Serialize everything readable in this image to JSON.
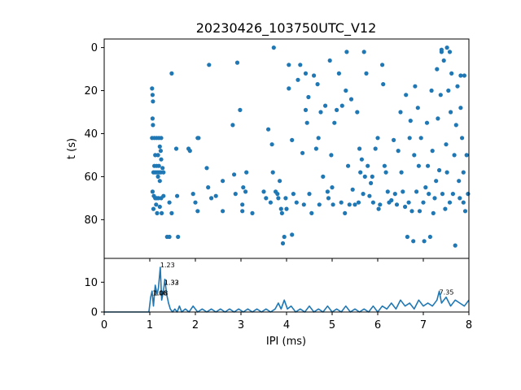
{
  "chart_data": {
    "title": "20230426_103750UTC_V12",
    "color": "#1f77b4",
    "raster": {
      "type": "scatter",
      "xlim": [
        0,
        8
      ],
      "ylim": [
        98,
        -4
      ],
      "ylabel": "t (s)",
      "yticks": [
        0,
        20,
        40,
        60,
        80
      ],
      "points": [
        [
          1.05,
          19
        ],
        [
          1.06,
          22
        ],
        [
          1.07,
          25
        ],
        [
          1.06,
          33
        ],
        [
          1.07,
          36
        ],
        [
          1.05,
          42
        ],
        [
          1.1,
          42
        ],
        [
          1.15,
          42
        ],
        [
          1.2,
          42
        ],
        [
          1.25,
          42
        ],
        [
          1.22,
          46
        ],
        [
          1.24,
          48
        ],
        [
          1.12,
          50
        ],
        [
          1.18,
          50
        ],
        [
          1.25,
          52
        ],
        [
          1.1,
          55
        ],
        [
          1.15,
          55
        ],
        [
          1.2,
          55
        ],
        [
          1.28,
          56
        ],
        [
          1.08,
          58
        ],
        [
          1.12,
          58
        ],
        [
          1.16,
          58
        ],
        [
          1.2,
          58
        ],
        [
          1.24,
          58
        ],
        [
          1.3,
          58
        ],
        [
          1.18,
          60
        ],
        [
          1.22,
          62
        ],
        [
          1.06,
          67
        ],
        [
          1.09,
          69
        ],
        [
          1.12,
          70
        ],
        [
          1.15,
          70
        ],
        [
          1.19,
          70
        ],
        [
          1.25,
          70
        ],
        [
          1.3,
          69
        ],
        [
          1.14,
          73
        ],
        [
          1.22,
          74
        ],
        [
          1.08,
          75
        ],
        [
          1.16,
          77
        ],
        [
          1.26,
          77
        ],
        [
          1.38,
          88
        ],
        [
          1.43,
          88
        ],
        [
          1.62,
          88
        ],
        [
          1.48,
          12
        ],
        [
          1.58,
          47
        ],
        [
          1.6,
          69
        ],
        [
          1.43,
          72
        ],
        [
          1.48,
          77
        ],
        [
          1.85,
          47
        ],
        [
          1.88,
          48
        ],
        [
          2.05,
          42
        ],
        [
          2.07,
          42
        ],
        [
          1.95,
          68
        ],
        [
          2.0,
          72
        ],
        [
          2.05,
          76
        ],
        [
          2.3,
          8
        ],
        [
          2.25,
          56
        ],
        [
          2.28,
          65
        ],
        [
          2.35,
          70
        ],
        [
          2.45,
          69
        ],
        [
          2.6,
          76
        ],
        [
          2.6,
          62
        ],
        [
          2.82,
          36
        ],
        [
          2.98,
          29
        ],
        [
          2.92,
          7
        ],
        [
          2.85,
          59
        ],
        [
          2.88,
          68
        ],
        [
          3.03,
          73
        ],
        [
          3.03,
          76
        ],
        [
          3.05,
          65
        ],
        [
          3.12,
          58
        ],
        [
          3.1,
          67
        ],
        [
          3.25,
          77
        ],
        [
          3.5,
          67
        ],
        [
          3.55,
          70
        ],
        [
          3.6,
          38
        ],
        [
          3.68,
          45
        ],
        [
          3.7,
          58
        ],
        [
          3.76,
          67
        ],
        [
          3.8,
          68
        ],
        [
          3.85,
          62
        ],
        [
          3.82,
          70
        ],
        [
          3.88,
          75
        ],
        [
          3.9,
          77
        ],
        [
          3.92,
          91
        ],
        [
          3.95,
          88
        ],
        [
          3.65,
          72
        ],
        [
          3.72,
          0
        ],
        [
          3.98,
          70
        ],
        [
          4.0,
          75
        ],
        [
          4.05,
          8
        ],
        [
          4.05,
          19
        ],
        [
          4.12,
          43
        ],
        [
          4.12,
          87
        ],
        [
          4.15,
          68
        ],
        [
          4.22,
          72
        ],
        [
          4.25,
          15
        ],
        [
          4.3,
          8
        ],
        [
          4.35,
          49
        ],
        [
          4.38,
          73
        ],
        [
          4.42,
          12
        ],
        [
          4.42,
          29
        ],
        [
          4.45,
          35
        ],
        [
          4.48,
          23
        ],
        [
          4.5,
          68
        ],
        [
          4.55,
          77
        ],
        [
          4.6,
          13
        ],
        [
          4.65,
          47
        ],
        [
          4.68,
          17
        ],
        [
          4.7,
          42
        ],
        [
          4.72,
          73
        ],
        [
          4.75,
          30
        ],
        [
          4.8,
          60
        ],
        [
          4.85,
          27
        ],
        [
          4.9,
          67
        ],
        [
          4.92,
          70
        ],
        [
          4.95,
          6
        ],
        [
          4.98,
          50
        ],
        [
          5.0,
          65
        ],
        [
          5.02,
          73
        ],
        [
          5.05,
          35
        ],
        [
          5.1,
          29
        ],
        [
          5.15,
          12
        ],
        [
          5.2,
          72
        ],
        [
          5.22,
          27
        ],
        [
          5.28,
          77
        ],
        [
          5.3,
          20
        ],
        [
          5.32,
          2
        ],
        [
          5.35,
          55
        ],
        [
          5.38,
          73
        ],
        [
          5.42,
          24
        ],
        [
          5.45,
          66
        ],
        [
          5.5,
          73
        ],
        [
          5.55,
          30
        ],
        [
          5.58,
          72
        ],
        [
          5.6,
          47
        ],
        [
          5.62,
          58
        ],
        [
          5.65,
          52
        ],
        [
          5.68,
          68
        ],
        [
          5.7,
          2
        ],
        [
          5.72,
          60
        ],
        [
          5.75,
          12
        ],
        [
          5.78,
          55
        ],
        [
          5.82,
          69
        ],
        [
          5.85,
          63
        ],
        [
          5.88,
          60
        ],
        [
          5.9,
          72
        ],
        [
          5.95,
          47
        ],
        [
          6.0,
          42
        ],
        [
          6.02,
          75
        ],
        [
          6.05,
          73
        ],
        [
          6.1,
          8
        ],
        [
          6.12,
          17
        ],
        [
          6.15,
          55
        ],
        [
          6.18,
          58
        ],
        [
          6.22,
          67
        ],
        [
          6.25,
          72
        ],
        [
          6.3,
          71
        ],
        [
          6.35,
          43
        ],
        [
          6.38,
          68
        ],
        [
          6.42,
          73
        ],
        [
          6.45,
          48
        ],
        [
          6.5,
          30
        ],
        [
          6.52,
          58
        ],
        [
          6.55,
          67
        ],
        [
          6.6,
          74
        ],
        [
          6.62,
          22
        ],
        [
          6.65,
          88
        ],
        [
          6.68,
          72
        ],
        [
          6.7,
          42
        ],
        [
          6.72,
          34
        ],
        [
          6.75,
          76
        ],
        [
          6.78,
          90
        ],
        [
          6.8,
          50
        ],
        [
          6.82,
          18
        ],
        [
          6.85,
          67
        ],
        [
          6.88,
          28
        ],
        [
          6.9,
          55
        ],
        [
          6.92,
          76
        ],
        [
          6.95,
          42
        ],
        [
          7.0,
          72
        ],
        [
          7.02,
          90
        ],
        [
          7.05,
          65
        ],
        [
          7.08,
          35
        ],
        [
          7.1,
          55
        ],
        [
          7.12,
          68
        ],
        [
          7.15,
          88
        ],
        [
          7.18,
          20
        ],
        [
          7.2,
          48
        ],
        [
          7.22,
          77
        ],
        [
          7.25,
          70
        ],
        [
          7.28,
          62
        ],
        [
          7.3,
          10
        ],
        [
          7.32,
          33
        ],
        [
          7.35,
          57
        ],
        [
          7.38,
          22
        ],
        [
          7.4,
          2
        ],
        [
          7.42,
          68
        ],
        [
          7.45,
          6
        ],
        [
          7.48,
          75
        ],
        [
          7.5,
          45
        ],
        [
          7.52,
          58
        ],
        [
          7.55,
          20
        ],
        [
          7.58,
          72
        ],
        [
          7.6,
          30
        ],
        [
          7.62,
          12
        ],
        [
          7.65,
          68
        ],
        [
          7.68,
          50
        ],
        [
          7.7,
          92
        ],
        [
          7.72,
          36
        ],
        [
          7.75,
          18
        ],
        [
          7.78,
          62
        ],
        [
          7.8,
          70
        ],
        [
          7.82,
          28
        ],
        [
          7.85,
          42
        ],
        [
          7.88,
          58
        ],
        [
          7.9,
          13
        ],
        [
          7.92,
          76
        ],
        [
          7.95,
          50
        ],
        [
          7.98,
          68
        ],
        [
          7.52,
          0
        ],
        [
          7.58,
          2
        ],
        [
          7.4,
          1
        ],
        [
          7.82,
          13
        ],
        [
          7.88,
          72
        ]
      ]
    },
    "histogram": {
      "type": "line",
      "xlim": [
        0,
        8
      ],
      "ylim": [
        0,
        18
      ],
      "xlabel": "IPI (ms)",
      "xticks": [
        0,
        1,
        2,
        3,
        4,
        5,
        6,
        7,
        8
      ],
      "yticks": [
        0,
        10
      ],
      "x": [
        0.0,
        0.98,
        1.02,
        1.05,
        1.08,
        1.12,
        1.16,
        1.19,
        1.23,
        1.26,
        1.3,
        1.33,
        1.37,
        1.41,
        1.45,
        1.5,
        1.55,
        1.6,
        1.65,
        1.7,
        1.78,
        1.86,
        1.95,
        2.05,
        2.15,
        2.25,
        2.35,
        2.45,
        2.55,
        2.65,
        2.75,
        2.85,
        2.95,
        3.05,
        3.15,
        3.25,
        3.35,
        3.45,
        3.55,
        3.65,
        3.75,
        3.82,
        3.88,
        3.95,
        4.02,
        4.1,
        4.2,
        4.3,
        4.4,
        4.5,
        4.6,
        4.7,
        4.8,
        4.9,
        5.0,
        5.1,
        5.2,
        5.3,
        5.4,
        5.5,
        5.6,
        5.7,
        5.8,
        5.9,
        6.0,
        6.1,
        6.2,
        6.3,
        6.4,
        6.5,
        6.6,
        6.7,
        6.8,
        6.9,
        7.0,
        7.1,
        7.2,
        7.3,
        7.35,
        7.4,
        7.5,
        7.6,
        7.7,
        7.8,
        7.9,
        8.0
      ],
      "y": [
        0,
        0,
        5,
        7,
        2,
        9,
        6,
        8,
        15,
        4,
        7,
        11,
        6,
        3,
        1,
        0,
        1,
        0,
        2,
        0,
        1,
        0,
        2,
        0,
        1,
        0,
        1,
        0,
        1,
        0,
        1,
        0,
        1,
        0,
        1,
        0,
        1,
        0,
        1,
        0,
        1,
        3,
        1,
        4,
        1,
        2,
        0,
        1,
        0,
        2,
        0,
        1,
        0,
        2,
        0,
        1,
        0,
        2,
        0,
        1,
        0,
        1,
        0,
        2,
        0,
        2,
        1,
        3,
        1,
        4,
        2,
        3,
        1,
        4,
        2,
        3,
        2,
        4,
        7,
        3,
        5,
        2,
        4,
        3,
        2,
        4
      ],
      "annotations": [
        {
          "x": 1.23,
          "y": 15,
          "text": "1.23"
        },
        {
          "x": 1.32,
          "y": 9.2,
          "text": "1.33"
        },
        {
          "x": 1.32,
          "y": 9.2,
          "text": "1.32"
        },
        {
          "x": 1.06,
          "y": 5.6,
          "text": "1.06"
        },
        {
          "x": 1.08,
          "y": 5.6,
          "text": "1.08"
        },
        {
          "x": 7.35,
          "y": 5.9,
          "text": "7.35"
        }
      ]
    }
  }
}
